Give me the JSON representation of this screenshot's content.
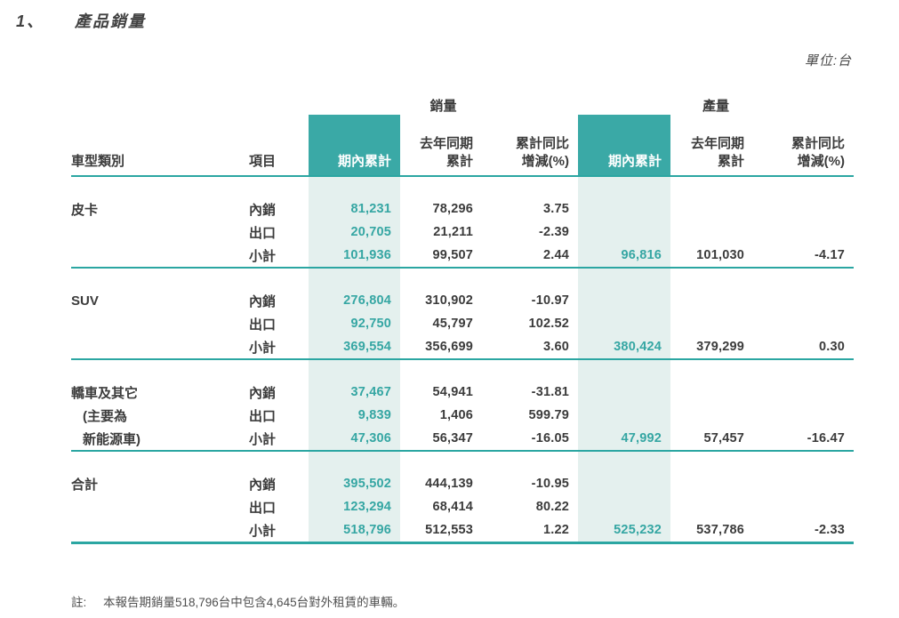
{
  "page": {
    "title_no": "1、",
    "title_text": "產品銷量",
    "unit_label": "單位:台"
  },
  "table": {
    "header": {
      "sales_group": "銷量",
      "production_group": "產量",
      "category": "車型類別",
      "item": "項目",
      "period": "期內累計",
      "prev1": "去年同期",
      "prev2": "累計",
      "yoy1": "累計同比",
      "yoy2": "增減(%)"
    },
    "blocks": [
      {
        "cat1": "皮卡",
        "cat2": "",
        "cat3": "",
        "rows": [
          {
            "item": "內銷",
            "s_cur": "81,231",
            "s_prev": "78,296",
            "s_yoy": "3.75",
            "p_cur": "",
            "p_prev": "",
            "p_yoy": ""
          },
          {
            "item": "出口",
            "s_cur": "20,705",
            "s_prev": "21,211",
            "s_yoy": "-2.39",
            "p_cur": "",
            "p_prev": "",
            "p_yoy": ""
          },
          {
            "item": "小計",
            "s_cur": "101,936",
            "s_prev": "99,507",
            "s_yoy": "2.44",
            "p_cur": "96,816",
            "p_prev": "101,030",
            "p_yoy": "-4.17"
          }
        ]
      },
      {
        "cat1": "SUV",
        "cat2": "",
        "cat3": "",
        "rows": [
          {
            "item": "內銷",
            "s_cur": "276,804",
            "s_prev": "310,902",
            "s_yoy": "-10.97",
            "p_cur": "",
            "p_prev": "",
            "p_yoy": ""
          },
          {
            "item": "出口",
            "s_cur": "92,750",
            "s_prev": "45,797",
            "s_yoy": "102.52",
            "p_cur": "",
            "p_prev": "",
            "p_yoy": ""
          },
          {
            "item": "小計",
            "s_cur": "369,554",
            "s_prev": "356,699",
            "s_yoy": "3.60",
            "p_cur": "380,424",
            "p_prev": "379,299",
            "p_yoy": "0.30"
          }
        ]
      },
      {
        "cat1": "轎車及其它",
        "cat2": "(主要為",
        "cat3": "新能源車)",
        "rows": [
          {
            "item": "內銷",
            "s_cur": "37,467",
            "s_prev": "54,941",
            "s_yoy": "-31.81",
            "p_cur": "",
            "p_prev": "",
            "p_yoy": ""
          },
          {
            "item": "出口",
            "s_cur": "9,839",
            "s_prev": "1,406",
            "s_yoy": "599.79",
            "p_cur": "",
            "p_prev": "",
            "p_yoy": ""
          },
          {
            "item": "小計",
            "s_cur": "47,306",
            "s_prev": "56,347",
            "s_yoy": "-16.05",
            "p_cur": "47,992",
            "p_prev": "57,457",
            "p_yoy": "-16.47"
          }
        ]
      },
      {
        "cat1": "合計",
        "cat2": "",
        "cat3": "",
        "rows": [
          {
            "item": "內銷",
            "s_cur": "395,502",
            "s_prev": "444,139",
            "s_yoy": "-10.95",
            "p_cur": "",
            "p_prev": "",
            "p_yoy": ""
          },
          {
            "item": "出口",
            "s_cur": "123,294",
            "s_prev": "68,414",
            "s_yoy": "80.22",
            "p_cur": "",
            "p_prev": "",
            "p_yoy": ""
          },
          {
            "item": "小計",
            "s_cur": "518,796",
            "s_prev": "512,553",
            "s_yoy": "1.22",
            "p_cur": "525,232",
            "p_prev": "537,786",
            "p_yoy": "-2.33"
          }
        ]
      }
    ],
    "note_label": "註:",
    "note_text": "本報告期銷量518,796台中包含4,645台對外租賃的車輛。"
  },
  "colors": {
    "teal_header": "#3aa9a6",
    "teal_light_column": "#e4f0ee",
    "rule_line": "#2ba6a2",
    "text": "#3b3b3b"
  }
}
